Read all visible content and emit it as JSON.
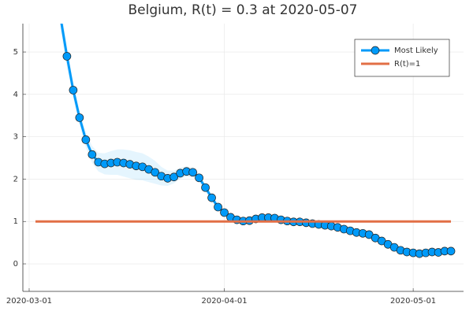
{
  "chart_data": {
    "type": "line",
    "title": "Belgium, R(t) = 0.3 at 2020-05-07",
    "xlim": [
      "2020-02-29",
      "2020-05-09"
    ],
    "xticks": [
      "2020-03-01",
      "2020-04-01",
      "2020-05-01"
    ],
    "ylim": [
      -0.65,
      5.67
    ],
    "yticks": [
      0,
      1,
      2,
      3,
      4,
      5
    ],
    "grid": true,
    "legend": "top-right",
    "series": [
      {
        "name": "Most Likely",
        "color": "#009af9",
        "markers": true,
        "x": [
          "2020-03-06",
          "2020-03-07",
          "2020-03-08",
          "2020-03-09",
          "2020-03-10",
          "2020-03-11",
          "2020-03-12",
          "2020-03-13",
          "2020-03-14",
          "2020-03-15",
          "2020-03-16",
          "2020-03-17",
          "2020-03-18",
          "2020-03-19",
          "2020-03-20",
          "2020-03-21",
          "2020-03-22",
          "2020-03-23",
          "2020-03-24",
          "2020-03-25",
          "2020-03-26",
          "2020-03-27",
          "2020-03-28",
          "2020-03-29",
          "2020-03-30",
          "2020-03-31",
          "2020-04-01",
          "2020-04-02",
          "2020-04-03",
          "2020-04-04",
          "2020-04-05",
          "2020-04-06",
          "2020-04-07",
          "2020-04-08",
          "2020-04-09",
          "2020-04-10",
          "2020-04-11",
          "2020-04-12",
          "2020-04-13",
          "2020-04-14",
          "2020-04-15",
          "2020-04-16",
          "2020-04-17",
          "2020-04-18",
          "2020-04-19",
          "2020-04-20",
          "2020-04-21",
          "2020-04-22",
          "2020-04-23",
          "2020-04-24",
          "2020-04-25",
          "2020-04-26",
          "2020-04-27",
          "2020-04-28",
          "2020-04-29",
          "2020-04-30",
          "2020-05-01",
          "2020-05-02",
          "2020-05-03",
          "2020-05-04",
          "2020-05-05",
          "2020-05-06",
          "2020-05-07"
        ],
        "values": [
          5.8,
          4.9,
          4.1,
          3.45,
          2.93,
          2.58,
          2.4,
          2.36,
          2.38,
          2.4,
          2.38,
          2.35,
          2.31,
          2.29,
          2.23,
          2.16,
          2.07,
          2.02,
          2.05,
          2.14,
          2.18,
          2.16,
          2.03,
          1.8,
          1.56,
          1.34,
          1.21,
          1.1,
          1.04,
          1.01,
          1.02,
          1.06,
          1.09,
          1.09,
          1.08,
          1.04,
          1.01,
          0.99,
          0.99,
          0.97,
          0.95,
          0.93,
          0.91,
          0.89,
          0.86,
          0.82,
          0.78,
          0.74,
          0.72,
          0.69,
          0.61,
          0.54,
          0.46,
          0.39,
          0.32,
          0.28,
          0.26,
          0.24,
          0.26,
          0.28,
          0.27,
          0.3,
          0.3
        ],
        "lower": [
          5.5,
          4.65,
          3.9,
          3.27,
          2.75,
          2.38,
          2.18,
          2.11,
          2.1,
          2.1,
          2.06,
          2.02,
          1.98,
          1.97,
          1.93,
          1.89,
          1.85,
          1.84,
          1.9,
          2.01,
          2.06,
          2.04,
          1.93,
          1.7,
          1.48,
          1.27,
          1.15,
          1.05,
          1.0,
          0.97,
          0.98,
          1.02,
          1.05,
          1.05,
          1.04,
          1.0,
          0.97,
          0.95,
          0.95,
          0.93,
          0.91,
          0.89,
          0.87,
          0.85,
          0.82,
          0.78,
          0.74,
          0.7,
          0.68,
          0.65,
          0.57,
          0.5,
          0.42,
          0.35,
          0.28,
          0.24,
          0.22,
          0.2,
          0.22,
          0.24,
          0.23,
          0.26,
          0.26
        ],
        "upper": [
          6.1,
          5.15,
          4.3,
          3.63,
          3.11,
          2.78,
          2.62,
          2.61,
          2.66,
          2.7,
          2.7,
          2.68,
          2.64,
          2.61,
          2.53,
          2.43,
          2.29,
          2.2,
          2.2,
          2.27,
          2.3,
          2.28,
          2.13,
          1.9,
          1.64,
          1.41,
          1.27,
          1.15,
          1.08,
          1.05,
          1.06,
          1.1,
          1.13,
          1.13,
          1.12,
          1.08,
          1.05,
          1.03,
          1.03,
          1.01,
          0.99,
          0.97,
          0.95,
          0.93,
          0.9,
          0.86,
          0.82,
          0.78,
          0.76,
          0.73,
          0.65,
          0.58,
          0.5,
          0.43,
          0.36,
          0.32,
          0.3,
          0.28,
          0.3,
          0.32,
          0.31,
          0.34,
          0.34
        ]
      },
      {
        "name": "R(t)=1",
        "color": "#e26f46",
        "markers": false,
        "x": [
          "2020-03-02",
          "2020-05-07"
        ],
        "values": [
          1,
          1
        ]
      }
    ]
  }
}
